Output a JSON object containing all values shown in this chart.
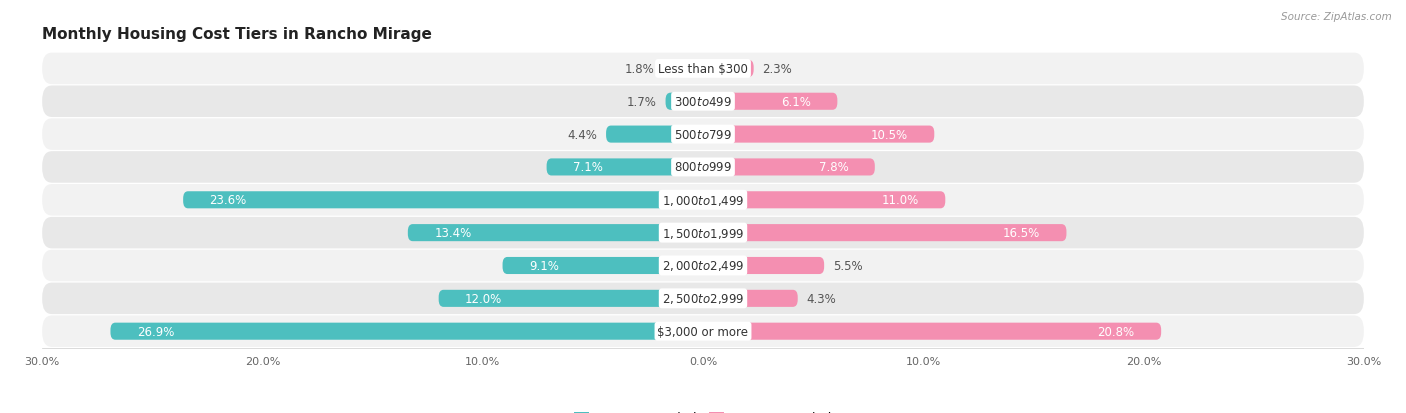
{
  "title": "Monthly Housing Cost Tiers in Rancho Mirage",
  "source": "Source: ZipAtlas.com",
  "categories": [
    "Less than $300",
    "$300 to $499",
    "$500 to $799",
    "$800 to $999",
    "$1,000 to $1,499",
    "$1,500 to $1,999",
    "$2,000 to $2,499",
    "$2,500 to $2,999",
    "$3,000 or more"
  ],
  "owner_values": [
    1.8,
    1.7,
    4.4,
    7.1,
    23.6,
    13.4,
    9.1,
    12.0,
    26.9
  ],
  "renter_values": [
    2.3,
    6.1,
    10.5,
    7.8,
    11.0,
    16.5,
    5.5,
    4.3,
    20.8
  ],
  "owner_color": "#4dbfbf",
  "renter_color": "#f48fb1",
  "row_bg_color_odd": "#f2f2f2",
  "row_bg_color_even": "#e8e8e8",
  "axis_limit": 30.0,
  "bar_height": 0.52,
  "title_fontsize": 11,
  "label_fontsize": 8.5,
  "category_fontsize": 8.5,
  "tick_fontsize": 8,
  "legend_fontsize": 9,
  "inside_label_threshold": 6.0
}
